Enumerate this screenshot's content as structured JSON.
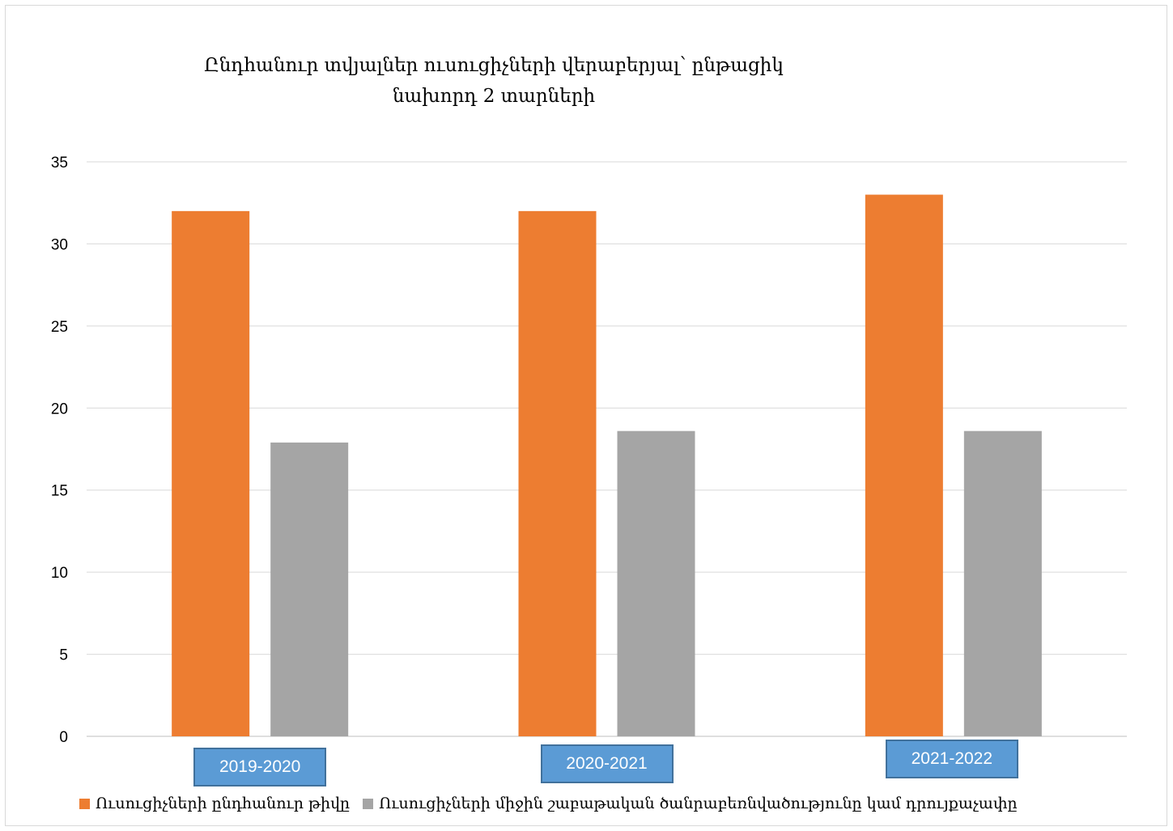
{
  "chart_data": {
    "type": "bar",
    "title": "Ընդհանուր տվյալներ ուսուցիչների վերաբերյալ՝ ընթացիկ նախորդ 2 տարների",
    "title_lines": [
      "Ընդհանուր տվյալներ ուսուցիչների վերաբերյալ՝ ընթացիկ",
      "նախորդ 2 տարների"
    ],
    "categories": [
      "2019-2020",
      "2020-2021",
      "2021-2022"
    ],
    "series": [
      {
        "name": "Ուսուցիչների ընդհանուր թիվը",
        "values": [
          32,
          32,
          33
        ],
        "color": "#ed7d31"
      },
      {
        "name": "Ուսուցիչների միջին շաբաթական ծանրաբեռնվածությունը կամ դրույքաչափը",
        "values": [
          17.9,
          18.6,
          18.6
        ],
        "color": "#a5a5a5"
      }
    ],
    "yticks": [
      "0",
      "5",
      "10",
      "15",
      "20",
      "25",
      "30",
      "35"
    ],
    "ylim": [
      0,
      35
    ],
    "grid": true,
    "legend_position": "bottom",
    "category_label_color": "#5b9bd5"
  }
}
